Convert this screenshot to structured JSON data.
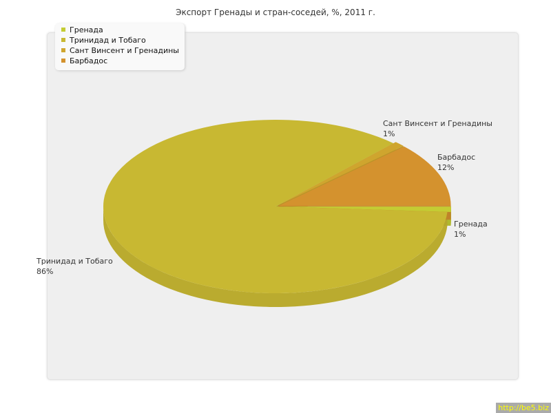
{
  "chart_data": {
    "type": "pie",
    "title": "Экспорт Гренады и стран-соседей, %, 2011 г.",
    "legend_position": "top-left",
    "categories": [
      "Гренада",
      "Тринидад и Тобаго",
      "Сант Винсент и Гренадины",
      "Барбадос"
    ],
    "values": [
      1,
      86,
      1,
      12
    ],
    "labels": [
      "1%",
      "86%",
      "1%",
      "12%"
    ],
    "colors": [
      "#c4cc33",
      "#c8b832",
      "#cfa52e",
      "#d4922e"
    ]
  },
  "credit": "http://be5.biz"
}
